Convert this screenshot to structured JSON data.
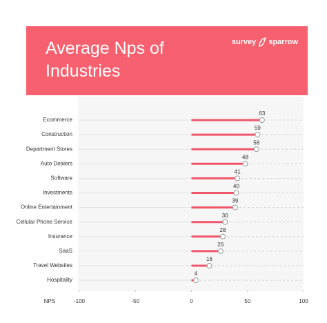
{
  "chart_data": {
    "type": "lollipop",
    "title": "Average Nps of Industries",
    "brand": [
      "survey",
      "sparrow"
    ],
    "xlabel": "NPS",
    "categories": [
      "Ecommerce",
      "Construction",
      "Department Stores",
      "Auto Dealers",
      "Software",
      "Investments",
      "Online Entertainment",
      "Cellular Phone Service",
      "Insurance",
      "SaaS",
      "Travel Websites",
      "Hospitality"
    ],
    "values": [
      63,
      59,
      58,
      48,
      41,
      40,
      39,
      30,
      28,
      26,
      16,
      4
    ],
    "color": "#f0566a",
    "xlim": [
      -100,
      100
    ],
    "xticks": [
      -100,
      -50,
      0,
      50,
      100
    ]
  }
}
